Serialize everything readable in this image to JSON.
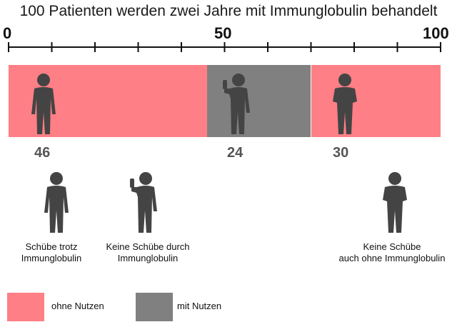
{
  "title": "100 Patienten werden zwei Jahre mit Immunglobulin behandelt",
  "scale": {
    "min": 0,
    "max": 100,
    "labels": [
      "0",
      "50",
      "100"
    ]
  },
  "segments": [
    {
      "value": 46,
      "count_label": "46",
      "color": "#ff7f86",
      "kind": "ohne Nutzen"
    },
    {
      "value": 24,
      "count_label": "24",
      "color": "#808080",
      "kind": "mit Nutzen"
    },
    {
      "value": 30,
      "count_label": "30",
      "color": "#ff7f86",
      "kind": "ohne Nutzen"
    }
  ],
  "captions": {
    "relapse": [
      "Schübe trotz",
      "Immunglobulin"
    ],
    "benefit": [
      "Keine Schübe durch",
      "Immunglobulin"
    ],
    "no_relapse": [
      "Keine Schübe",
      "auch ohne Immunglobulin"
    ]
  },
  "legend": {
    "no_benefit": {
      "label": "ohne Nutzen",
      "color": "#ff7f86"
    },
    "benefit": {
      "label": "mit Nutzen",
      "color": "#808080"
    }
  },
  "icons": [
    "person-relapse-icon",
    "person-thumbs-up-icon",
    "person-healthy-icon"
  ]
}
